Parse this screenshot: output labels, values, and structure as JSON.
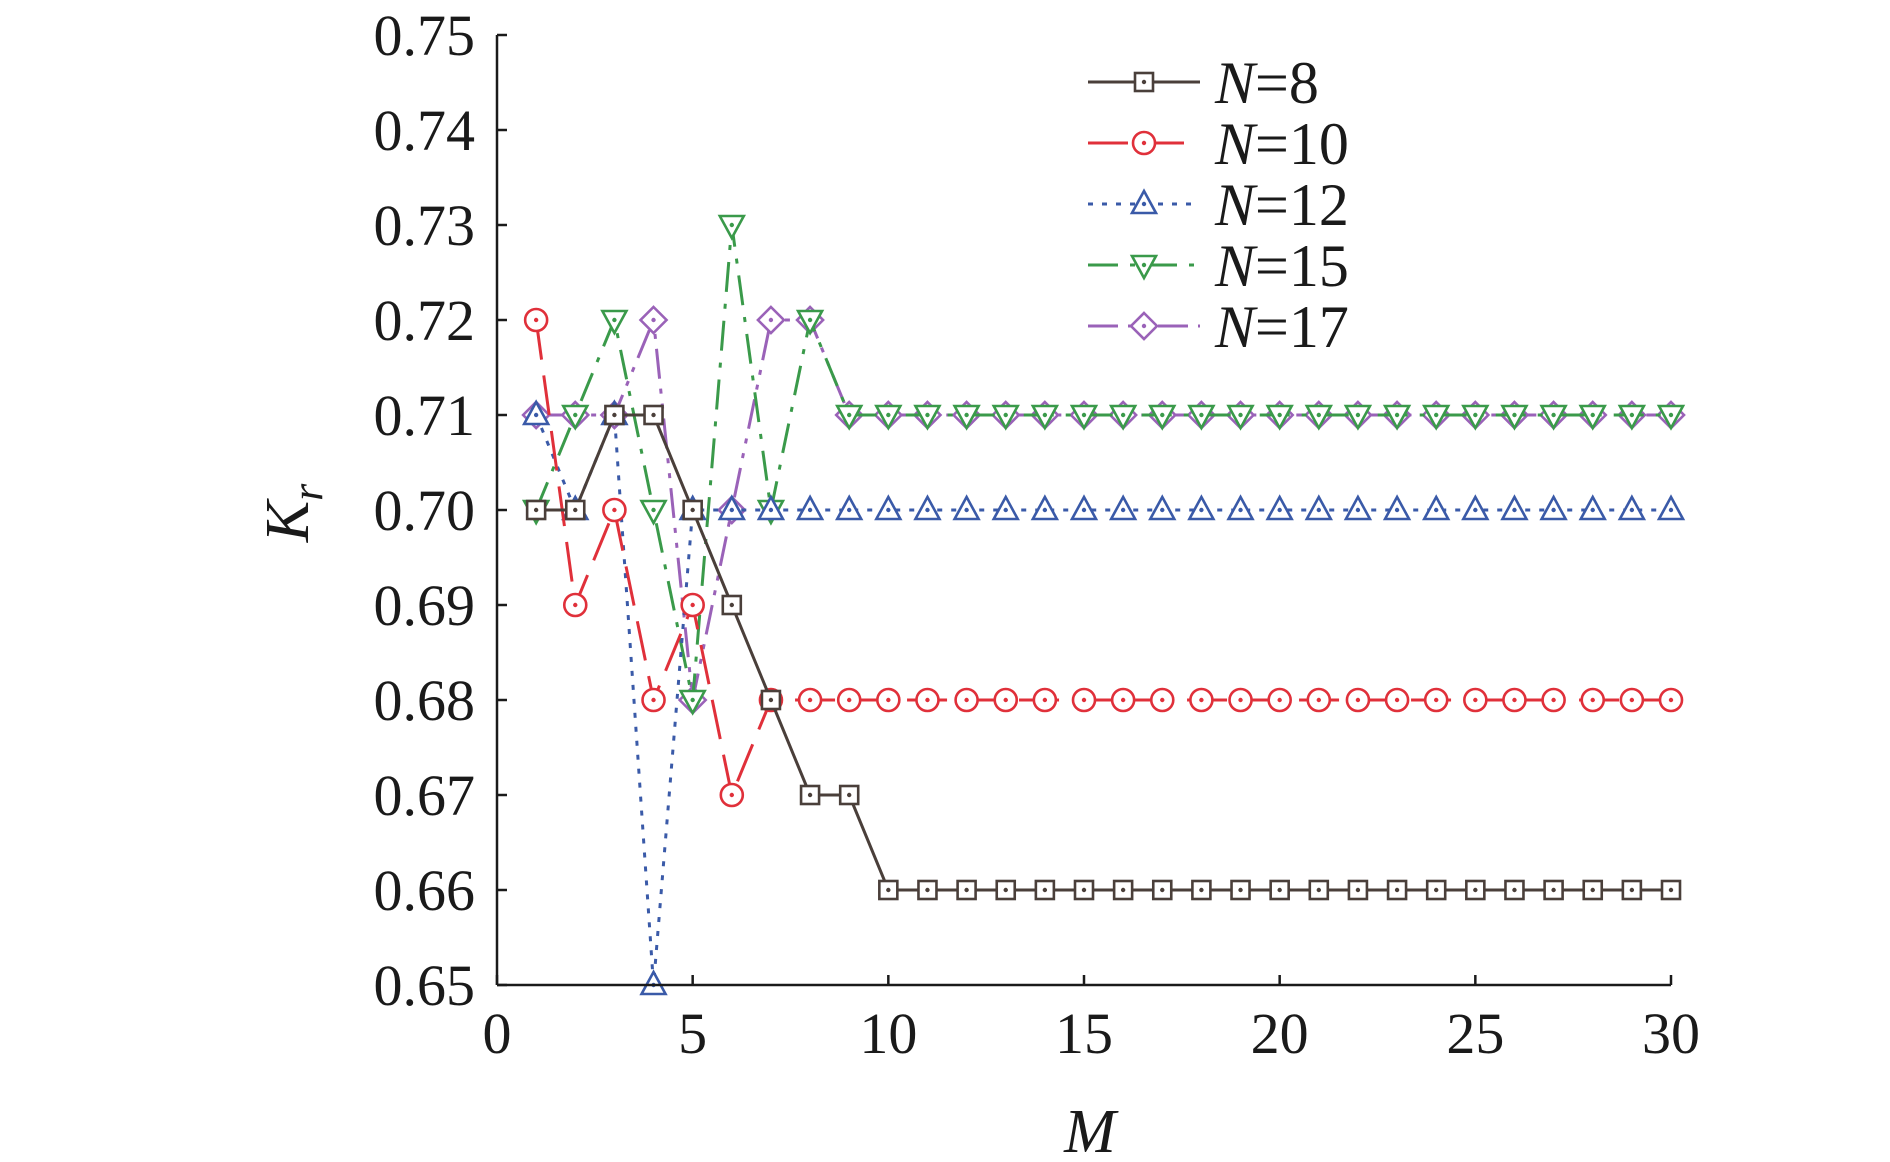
{
  "chart_data": {
    "type": "line",
    "xlabel": "M",
    "ylabel": "K",
    "ylabel_subscript": "r",
    "xlim": [
      0,
      30
    ],
    "ylim": [
      0.65,
      0.75
    ],
    "xticks": [
      0,
      5,
      10,
      15,
      20,
      25,
      30
    ],
    "yticks": [
      "0.65",
      "0.66",
      "0.67",
      "0.68",
      "0.69",
      "0.70",
      "0.71",
      "0.72",
      "0.73",
      "0.74",
      "0.75"
    ],
    "grid": false,
    "legend_position": "top-right",
    "x": [
      1,
      2,
      3,
      4,
      5,
      6,
      7,
      8,
      9,
      10,
      11,
      12,
      13,
      14,
      15,
      16,
      17,
      18,
      19,
      20,
      21,
      22,
      23,
      24,
      25,
      26,
      27,
      28,
      29,
      30
    ],
    "series": [
      {
        "name": "N=8",
        "var": "N",
        "eq": "=8",
        "color": "#4a3f3a",
        "dash": "solid",
        "marker": "square",
        "values": [
          0.7,
          0.7,
          0.71,
          0.71,
          0.7,
          0.69,
          0.68,
          0.67,
          0.67,
          0.66,
          0.66,
          0.66,
          0.66,
          0.66,
          0.66,
          0.66,
          0.66,
          0.66,
          0.66,
          0.66,
          0.66,
          0.66,
          0.66,
          0.66,
          0.66,
          0.66,
          0.66,
          0.66,
          0.66,
          0.66
        ]
      },
      {
        "name": "N=10",
        "var": "N",
        "eq": "=10",
        "color": "#e0303a",
        "dash": "longdash",
        "marker": "circle",
        "values": [
          0.72,
          0.69,
          0.7,
          0.68,
          0.69,
          0.67,
          0.68,
          0.68,
          0.68,
          0.68,
          0.68,
          0.68,
          0.68,
          0.68,
          0.68,
          0.68,
          0.68,
          0.68,
          0.68,
          0.68,
          0.68,
          0.68,
          0.68,
          0.68,
          0.68,
          0.68,
          0.68,
          0.68,
          0.68,
          0.68
        ]
      },
      {
        "name": "N=12",
        "var": "N",
        "eq": "=12",
        "color": "#3a5aa8",
        "dash": "dotted",
        "marker": "triangle-up",
        "values": [
          0.71,
          0.7,
          0.71,
          0.65,
          0.7,
          0.7,
          0.7,
          0.7,
          0.7,
          0.7,
          0.7,
          0.7,
          0.7,
          0.7,
          0.7,
          0.7,
          0.7,
          0.7,
          0.7,
          0.7,
          0.7,
          0.7,
          0.7,
          0.7,
          0.7,
          0.7,
          0.7,
          0.7,
          0.7,
          0.7
        ]
      },
      {
        "name": "N=15",
        "var": "N",
        "eq": "=15",
        "color": "#3a9a4a",
        "dash": "dashdot",
        "marker": "triangle-down",
        "values": [
          0.7,
          0.71,
          0.72,
          0.7,
          0.68,
          0.73,
          0.7,
          0.72,
          0.71,
          0.71,
          0.71,
          0.71,
          0.71,
          0.71,
          0.71,
          0.71,
          0.71,
          0.71,
          0.71,
          0.71,
          0.71,
          0.71,
          0.71,
          0.71,
          0.71,
          0.71,
          0.71,
          0.71,
          0.71,
          0.71
        ]
      },
      {
        "name": "N=17",
        "var": "N",
        "eq": "=17",
        "color": "#9a62b8",
        "dash": "dashdotdot",
        "marker": "diamond",
        "values": [
          0.71,
          0.71,
          0.71,
          0.72,
          0.68,
          0.7,
          0.72,
          0.72,
          0.71,
          0.71,
          0.71,
          0.71,
          0.71,
          0.71,
          0.71,
          0.71,
          0.71,
          0.71,
          0.71,
          0.71,
          0.71,
          0.71,
          0.71,
          0.71,
          0.71,
          0.71,
          0.71,
          0.71,
          0.71,
          0.71
        ]
      }
    ]
  }
}
